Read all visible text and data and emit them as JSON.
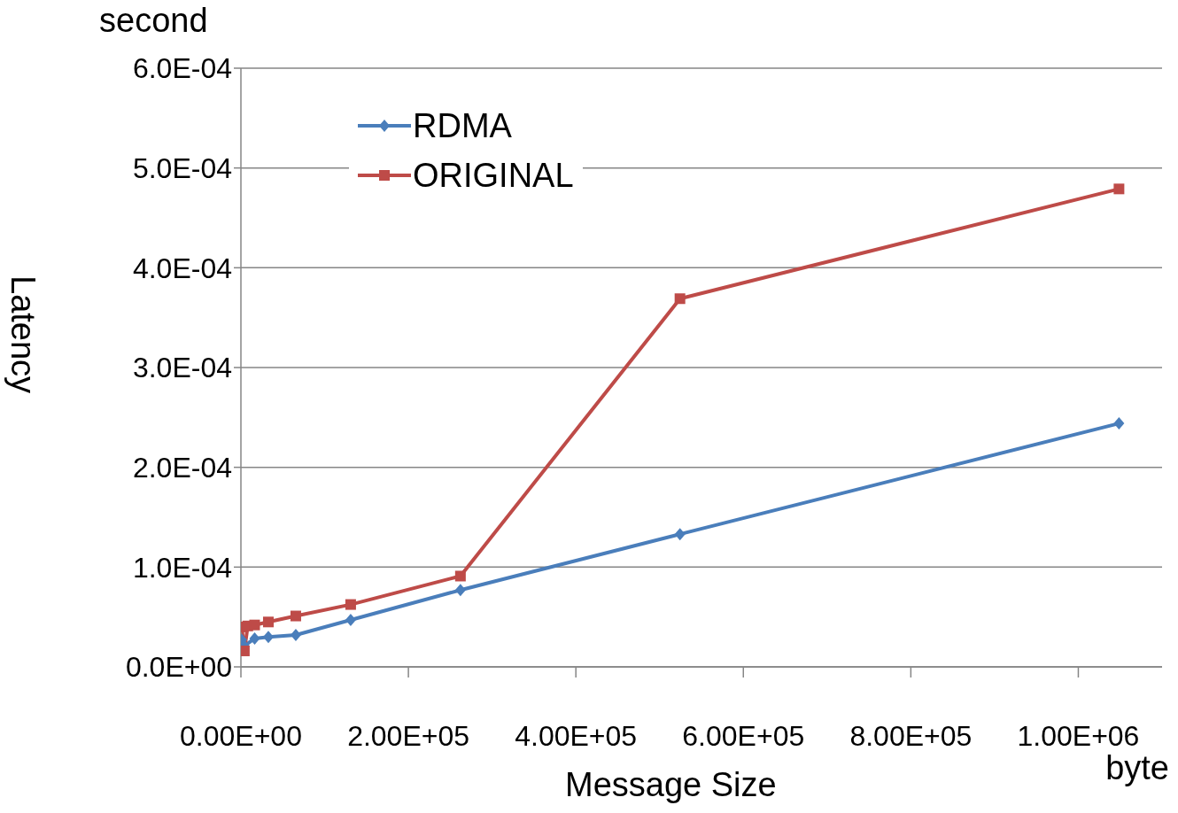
{
  "chart_data": {
    "type": "line",
    "xlabel": "Message Size",
    "ylabel": "Latency",
    "annotations": [
      "second",
      "byte"
    ],
    "xlim": [
      0,
      1100000
    ],
    "xticks": [
      {
        "value": 0,
        "label": "0.00E+00"
      },
      {
        "value": 200000,
        "label": "2.00E+05"
      },
      {
        "value": 400000,
        "label": "4.00E+05"
      },
      {
        "value": 600000,
        "label": "6.00E+05"
      },
      {
        "value": 800000,
        "label": "8.00E+05"
      },
      {
        "value": 1000000,
        "label": "1.00E+06"
      }
    ],
    "ylim": [
      0,
      0.0006
    ],
    "yticks": [
      {
        "value": 0,
        "label": "0.0E+00"
      },
      {
        "value": 0.0001,
        "label": "1.0E-04"
      },
      {
        "value": 0.0002,
        "label": "2.0E-04"
      },
      {
        "value": 0.0003,
        "label": "3.0E-04"
      },
      {
        "value": 0.0004,
        "label": "4.0E-04"
      },
      {
        "value": 0.0005,
        "label": "5.0E-04"
      },
      {
        "value": 0.0006,
        "label": "6.0E-04"
      }
    ],
    "grid": "y",
    "legend": "top left",
    "line_style": "solid",
    "series": [
      {
        "name": "RDMA",
        "color": "#4a7ebb",
        "marker": "diamond",
        "x": [
          1024,
          4096,
          16384,
          32768,
          65536,
          131072,
          262144,
          524288,
          1048576
        ],
        "values": [
          2.7e-05,
          2.1e-05,
          2.85e-05,
          3e-05,
          3.2e-05,
          4.7e-05,
          7.7e-05,
          0.000133,
          0.000244
        ]
      },
      {
        "name": "ORIGINAL",
        "color": "#be4b48",
        "marker": "square",
        "x": [
          1024,
          4096,
          8192,
          16384,
          32768,
          65536,
          131072,
          262144,
          524288,
          1048576
        ],
        "values": [
          4e-05,
          1.6e-05,
          4.1e-05,
          4.2e-05,
          4.5e-05,
          5.1e-05,
          6.25e-05,
          9.1e-05,
          0.000369,
          0.000479
        ]
      }
    ]
  }
}
